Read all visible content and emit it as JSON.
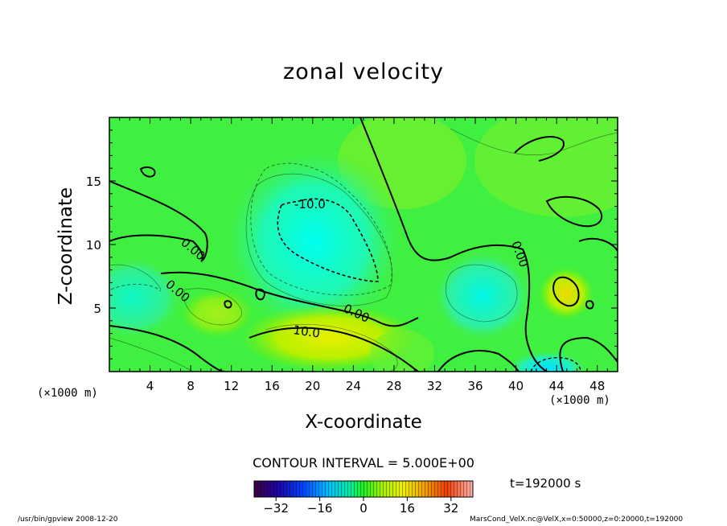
{
  "chart_data": {
    "type": "heatmap",
    "title": "zonal velocity",
    "xlabel": "X-coordinate",
    "ylabel": "Z-coordinate",
    "x_unit_label": "(×1000 m)",
    "xlim": [
      0,
      50
    ],
    "ylim": [
      0,
      20
    ],
    "x_ticks": [
      4,
      8,
      12,
      16,
      20,
      24,
      28,
      32,
      36,
      40,
      44,
      48
    ],
    "y_ticks": [
      5,
      10,
      15
    ],
    "contour_labels": [
      "-10.0",
      "0.00",
      "0.00",
      "0.00",
      "0.00",
      "10.0"
    ],
    "contour_interval": "CONTOUR INTERVAL = 5.000E+00",
    "colorbar": {
      "range": [
        -40,
        40
      ],
      "ticks": [
        -32,
        -16,
        0,
        16,
        32
      ],
      "tick_labels": [
        "−32",
        "−16",
        "0",
        "16",
        "32"
      ]
    },
    "time_label": "t=192000 s",
    "colors": {
      "background": "#00ff40",
      "positive": "#ffff00",
      "negative": "#00ffff"
    }
  },
  "footer": {
    "left": "/usr/bin/gpview 2008-12-20",
    "right": "MarsCond_VelX.nc@VelX,x=0:50000,z=0:20000,t=192000"
  }
}
